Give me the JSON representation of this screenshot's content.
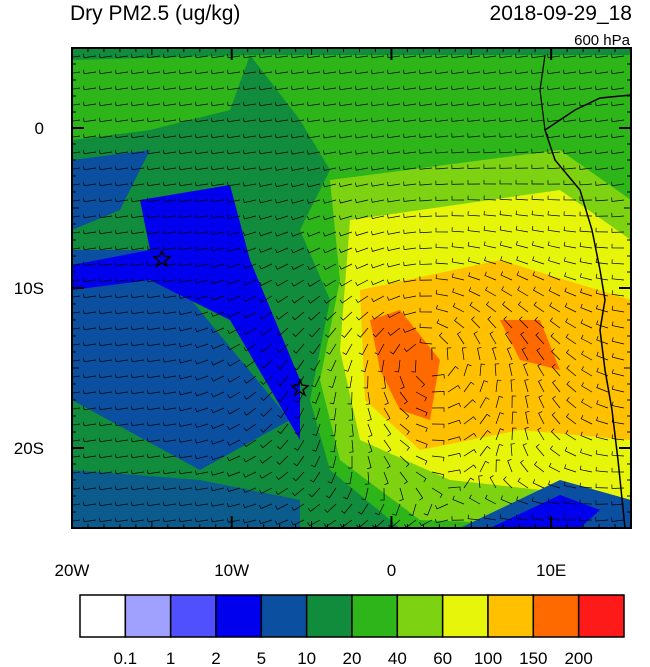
{
  "title": "Dry PM2.5 (ug/kg)",
  "time": "2018-09-29_18",
  "level": "600 hPa",
  "map": {
    "lon_range": [
      -20,
      15
    ],
    "lat_range": [
      -25,
      5
    ],
    "lon_ticks": [
      {
        "value": -20,
        "label": "20W"
      },
      {
        "value": -10,
        "label": "10W"
      },
      0,
      {
        "value": 10,
        "label": "10E"
      }
    ],
    "lat_ticks": [
      0,
      {
        "value": -10,
        "label": "10S"
      },
      {
        "value": -20,
        "label": "20S"
      }
    ]
  },
  "colorbar": {
    "colors": [
      "#ffffff",
      "#a0a0ff",
      "#5050ff",
      "#0000ee",
      "#0a4fa0",
      "#108c3c",
      "#2db51a",
      "#7dd212",
      "#e6f50a",
      "#ffc000",
      "#ff6a00",
      "#ff1a1a"
    ],
    "levels": [
      0.1,
      1,
      2,
      5,
      10,
      20,
      40,
      60,
      100,
      150,
      200
    ]
  }
}
